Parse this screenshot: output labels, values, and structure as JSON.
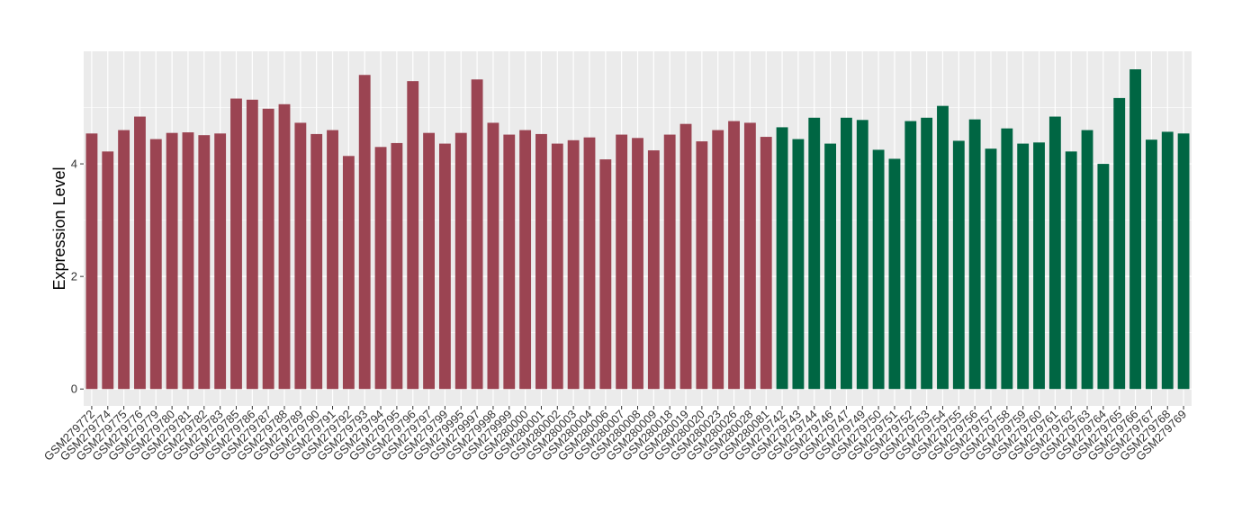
{
  "chart_data": {
    "type": "bar",
    "title": "",
    "xlabel": "",
    "ylabel": "Expression Level",
    "ylim": [
      -0.3,
      6.0
    ],
    "yticks": [
      0,
      2,
      4
    ],
    "grid": true,
    "legend": "none",
    "colors": {
      "group_1": "#9b4452",
      "group_2": "#006643",
      "panel_background": "#ebebeb",
      "gridline": "#ffffff"
    },
    "categories": [
      "GSM279772",
      "GSM279774",
      "GSM279775",
      "GSM279776",
      "GSM279779",
      "GSM279780",
      "GSM279781",
      "GSM279782",
      "GSM279783",
      "GSM279785",
      "GSM279786",
      "GSM279787",
      "GSM279788",
      "GSM279789",
      "GSM279790",
      "GSM279791",
      "GSM279792",
      "GSM279793",
      "GSM279794",
      "GSM279795",
      "GSM279796",
      "GSM279797",
      "GSM279799",
      "GSM279995",
      "GSM279997",
      "GSM279998",
      "GSM279999",
      "GSM280000",
      "GSM280001",
      "GSM280002",
      "GSM280003",
      "GSM280004",
      "GSM280006",
      "GSM280007",
      "GSM280008",
      "GSM280009",
      "GSM280018",
      "GSM280019",
      "GSM280020",
      "GSM280023",
      "GSM280026",
      "GSM280028",
      "GSM280081",
      "GSM279742",
      "GSM279743",
      "GSM279744",
      "GSM279746",
      "GSM279747",
      "GSM279749",
      "GSM279750",
      "GSM279751",
      "GSM279752",
      "GSM279753",
      "GSM279754",
      "GSM279755",
      "GSM279756",
      "GSM279757",
      "GSM279758",
      "GSM279759",
      "GSM279760",
      "GSM279761",
      "GSM279762",
      "GSM279763",
      "GSM279764",
      "GSM279765",
      "GSM279766",
      "GSM279767",
      "GSM279768",
      "GSM279769"
    ],
    "values": [
      4.54,
      4.22,
      4.6,
      4.84,
      4.44,
      4.55,
      4.56,
      4.51,
      4.54,
      5.16,
      5.14,
      4.98,
      5.06,
      4.73,
      4.53,
      4.6,
      4.14,
      5.58,
      4.3,
      4.37,
      5.47,
      4.55,
      4.36,
      4.55,
      5.5,
      4.73,
      4.52,
      4.6,
      4.53,
      4.36,
      4.42,
      4.47,
      4.08,
      4.52,
      4.46,
      4.24,
      4.52,
      4.71,
      4.4,
      4.6,
      4.76,
      4.73,
      4.48,
      4.65,
      4.44,
      4.82,
      4.36,
      4.82,
      4.78,
      4.25,
      4.09,
      4.76,
      4.82,
      5.03,
      4.41,
      4.79,
      4.27,
      4.63,
      4.36,
      4.38,
      4.84,
      4.22,
      4.6,
      4.0,
      5.17,
      5.68,
      4.43,
      4.57,
      4.54
    ],
    "groups": [
      1,
      1,
      1,
      1,
      1,
      1,
      1,
      1,
      1,
      1,
      1,
      1,
      1,
      1,
      1,
      1,
      1,
      1,
      1,
      1,
      1,
      1,
      1,
      1,
      1,
      1,
      1,
      1,
      1,
      1,
      1,
      1,
      1,
      1,
      1,
      1,
      1,
      1,
      1,
      1,
      1,
      1,
      1,
      2,
      2,
      2,
      2,
      2,
      2,
      2,
      2,
      2,
      2,
      2,
      2,
      2,
      2,
      2,
      2,
      2,
      2,
      2,
      2,
      2,
      2,
      2,
      2,
      2,
      2
    ]
  }
}
